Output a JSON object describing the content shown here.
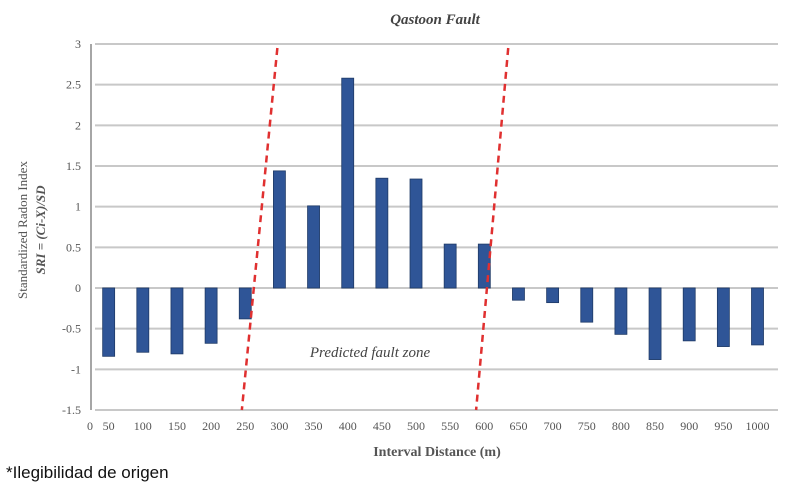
{
  "chart_data": {
    "type": "bar",
    "title": "Qastoon Fault",
    "xlabel": "Interval Distance (m)",
    "ylabel": "Standardized Radon Index",
    "ylabel_formula": "SRI = (Ci-X)/SD",
    "x_origin_label": "0",
    "categories": [
      "50",
      "100",
      "150",
      "200",
      "250",
      "300",
      "350",
      "400",
      "450",
      "500",
      "550",
      "600",
      "650",
      "700",
      "750",
      "800",
      "850",
      "900",
      "950",
      "1000"
    ],
    "values": [
      -0.84,
      -0.79,
      -0.81,
      -0.68,
      -0.38,
      1.44,
      1.01,
      2.58,
      1.35,
      1.34,
      0.54,
      0.54,
      -0.15,
      -0.18,
      -0.42,
      -0.57,
      -0.88,
      -0.65,
      -0.72,
      -0.7
    ],
    "ylim": [
      -1.5,
      3
    ],
    "yticks": [
      3,
      2.5,
      2,
      1.5,
      1,
      0.5,
      0,
      -0.5,
      -1,
      -1.5
    ],
    "ytick_labels": [
      "3",
      "2.5",
      "2",
      "1.5",
      "1",
      "0.5",
      "0",
      "-0.5",
      "-1",
      "-1.5"
    ],
    "grid": true,
    "bar_color": "#2f5597",
    "annotation": "Predicted fault zone",
    "fault_lines": [
      {
        "x_top": 297,
        "x_bottom": 245,
        "color": "#e03030"
      },
      {
        "x_top": 635,
        "x_bottom": 588,
        "color": "#e03030"
      }
    ]
  },
  "footer": "*Ilegibilidad de origen"
}
